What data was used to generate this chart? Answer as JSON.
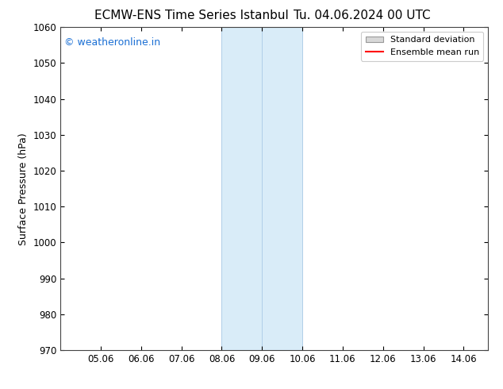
{
  "title_left": "ECMW-ENS Time Series Istanbul",
  "title_right": "Tu. 04.06.2024 00 UTC",
  "ylabel": "Surface Pressure (hPa)",
  "ylim": [
    970,
    1060
  ],
  "yticks": [
    970,
    980,
    990,
    1000,
    1010,
    1020,
    1030,
    1040,
    1050,
    1060
  ],
  "xtick_labels": [
    "05.06",
    "06.06",
    "07.06",
    "08.06",
    "09.06",
    "10.06",
    "11.06",
    "12.06",
    "13.06",
    "14.06"
  ],
  "xtick_positions": [
    1,
    2,
    3,
    4,
    5,
    6,
    7,
    8,
    9,
    10
  ],
  "xlim": [
    0.0,
    10.6
  ],
  "shaded_region_x1": 4,
  "shaded_region_x2": 6,
  "shaded_region_color": "#d9ecf8",
  "shaded_region_edge_color": "#b0cfe8",
  "divider_line_x": 5,
  "bg_color": "#ffffff",
  "plot_bg_color": "#ffffff",
  "watermark_text": "© weatheronline.in",
  "watermark_color": "#1a6fd4",
  "legend_std_dev_label": "Standard deviation",
  "legend_mean_label": "Ensemble mean run",
  "legend_std_dev_facecolor": "#d8d8d8",
  "legend_std_dev_edgecolor": "#999999",
  "legend_mean_color": "#ff0000",
  "title_fontsize": 11,
  "ylabel_fontsize": 9,
  "tick_fontsize": 8.5,
  "watermark_fontsize": 9,
  "legend_fontsize": 8
}
